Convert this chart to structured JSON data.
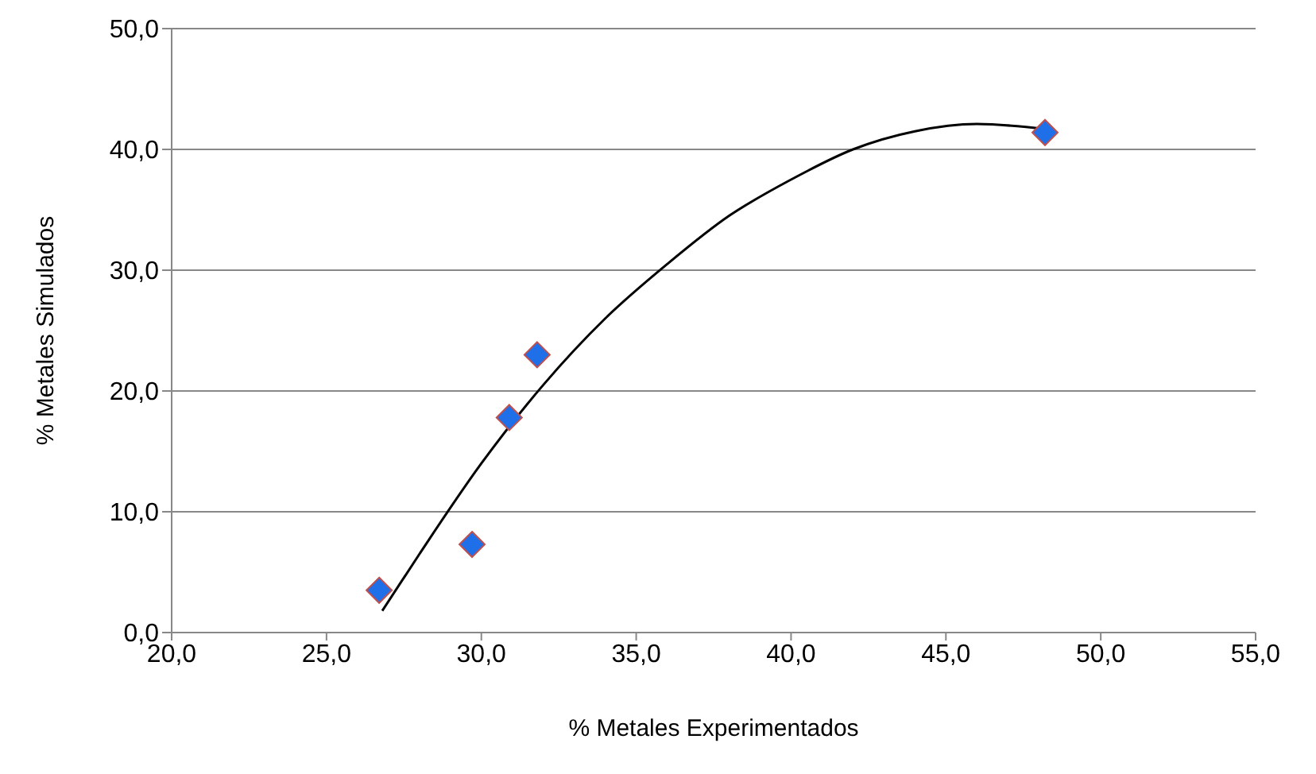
{
  "chart_data": {
    "type": "scatter",
    "xlabel": "% Metales    Experimentados",
    "ylabel": "% Metales    Simulados",
    "xlim": [
      20,
      55
    ],
    "xticks": [
      {
        "value": 20,
        "label": "20,0"
      },
      {
        "value": 25,
        "label": "25,0"
      },
      {
        "value": 30,
        "label": "30,0"
      },
      {
        "value": 35,
        "label": "35,0"
      },
      {
        "value": 40,
        "label": "40,0"
      },
      {
        "value": 45,
        "label": "45,0"
      },
      {
        "value": 50,
        "label": "50,0"
      },
      {
        "value": 55,
        "label": "55,0"
      }
    ],
    "ylim": [
      0,
      50
    ],
    "yticks": [
      {
        "value": 0,
        "label": "0,0"
      },
      {
        "value": 10,
        "label": "10,0"
      },
      {
        "value": 20,
        "label": "20,0"
      },
      {
        "value": 30,
        "label": "30,0"
      },
      {
        "value": 40,
        "label": "40,0"
      },
      {
        "value": 50,
        "label": "50,0"
      }
    ],
    "grid": "y",
    "marker": "diamond",
    "series": [
      {
        "color": "#1f6fe8",
        "x": [
          26.7,
          29.7,
          30.9,
          31.8,
          48.2
        ],
        "values": [
          3.5,
          7.3,
          17.8,
          23.0,
          41.4
        ]
      },
      {
        "type": "line",
        "color": "#000000",
        "marker": "none",
        "line_style": "solid",
        "x": [
          26.8,
          28,
          30,
          32,
          34,
          36,
          38,
          40,
          42,
          44,
          46,
          48.2
        ],
        "values": [
          1.8,
          6.5,
          14,
          20.5,
          26,
          30.5,
          34.5,
          37.5,
          40,
          41.5,
          42.1,
          41.7
        ]
      }
    ]
  }
}
